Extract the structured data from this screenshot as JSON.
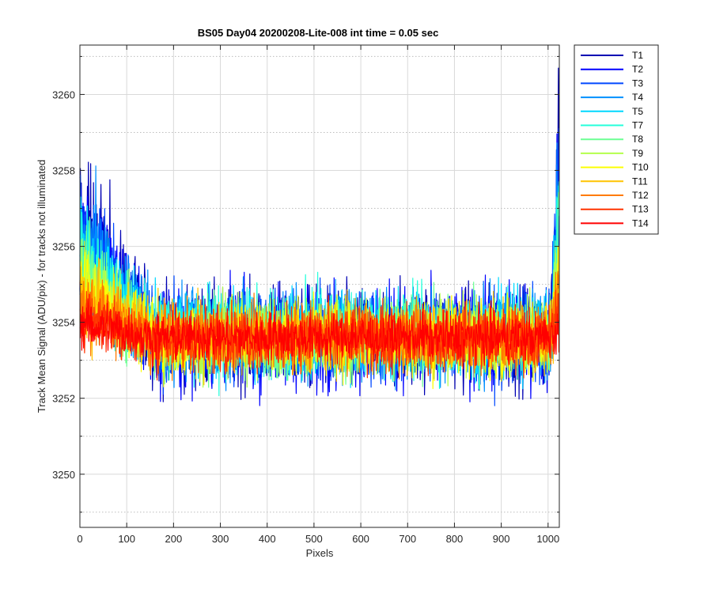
{
  "chart_data": {
    "type": "line",
    "title": "BS05 Day04 20200208-Lite-008 int time = 0.05 sec",
    "xlabel": "Pixels",
    "ylabel": "Track Mean Signal (ADU/pix) - for tracks not illuminated",
    "xlim": [
      0,
      1024
    ],
    "ylim": [
      3248.6,
      3261.3
    ],
    "xticks": [
      0,
      100,
      200,
      300,
      400,
      500,
      600,
      700,
      800,
      900,
      1000
    ],
    "yticks": [
      3250,
      3252,
      3254,
      3256,
      3258,
      3260
    ],
    "y_minor_ticks": [
      3249,
      3251,
      3253,
      3255,
      3257,
      3259,
      3261
    ],
    "grid": true,
    "minor_grid": true,
    "legend_position": "outside-top-right",
    "series": [
      {
        "name": "T1",
        "color": "#0000b3",
        "mean": 3253.6,
        "noise": 1.2
      },
      {
        "name": "T2",
        "color": "#0000ff",
        "mean": 3253.6,
        "noise": 1.2
      },
      {
        "name": "T3",
        "color": "#0048ff",
        "mean": 3253.6,
        "noise": 1.1
      },
      {
        "name": "T4",
        "color": "#0090ff",
        "mean": 3253.7,
        "noise": 1.1
      },
      {
        "name": "T5",
        "color": "#00d8ff",
        "mean": 3253.7,
        "noise": 1.0
      },
      {
        "name": "T7",
        "color": "#24ffdb",
        "mean": 3253.7,
        "noise": 1.0
      },
      {
        "name": "T8",
        "color": "#6cff93",
        "mean": 3253.6,
        "noise": 0.95
      },
      {
        "name": "T9",
        "color": "#b4ff4b",
        "mean": 3253.6,
        "noise": 0.9
      },
      {
        "name": "T10",
        "color": "#fcff03",
        "mean": 3253.6,
        "noise": 0.9
      },
      {
        "name": "T11",
        "color": "#ffc300",
        "mean": 3253.6,
        "noise": 0.85
      },
      {
        "name": "T12",
        "color": "#ff7b00",
        "mean": 3253.6,
        "noise": 0.8
      },
      {
        "name": "T13",
        "color": "#ff3300",
        "mean": 3253.6,
        "noise": 0.75
      },
      {
        "name": "T14",
        "color": "#ff0000",
        "mean": 3253.6,
        "noise": 0.6
      }
    ]
  }
}
